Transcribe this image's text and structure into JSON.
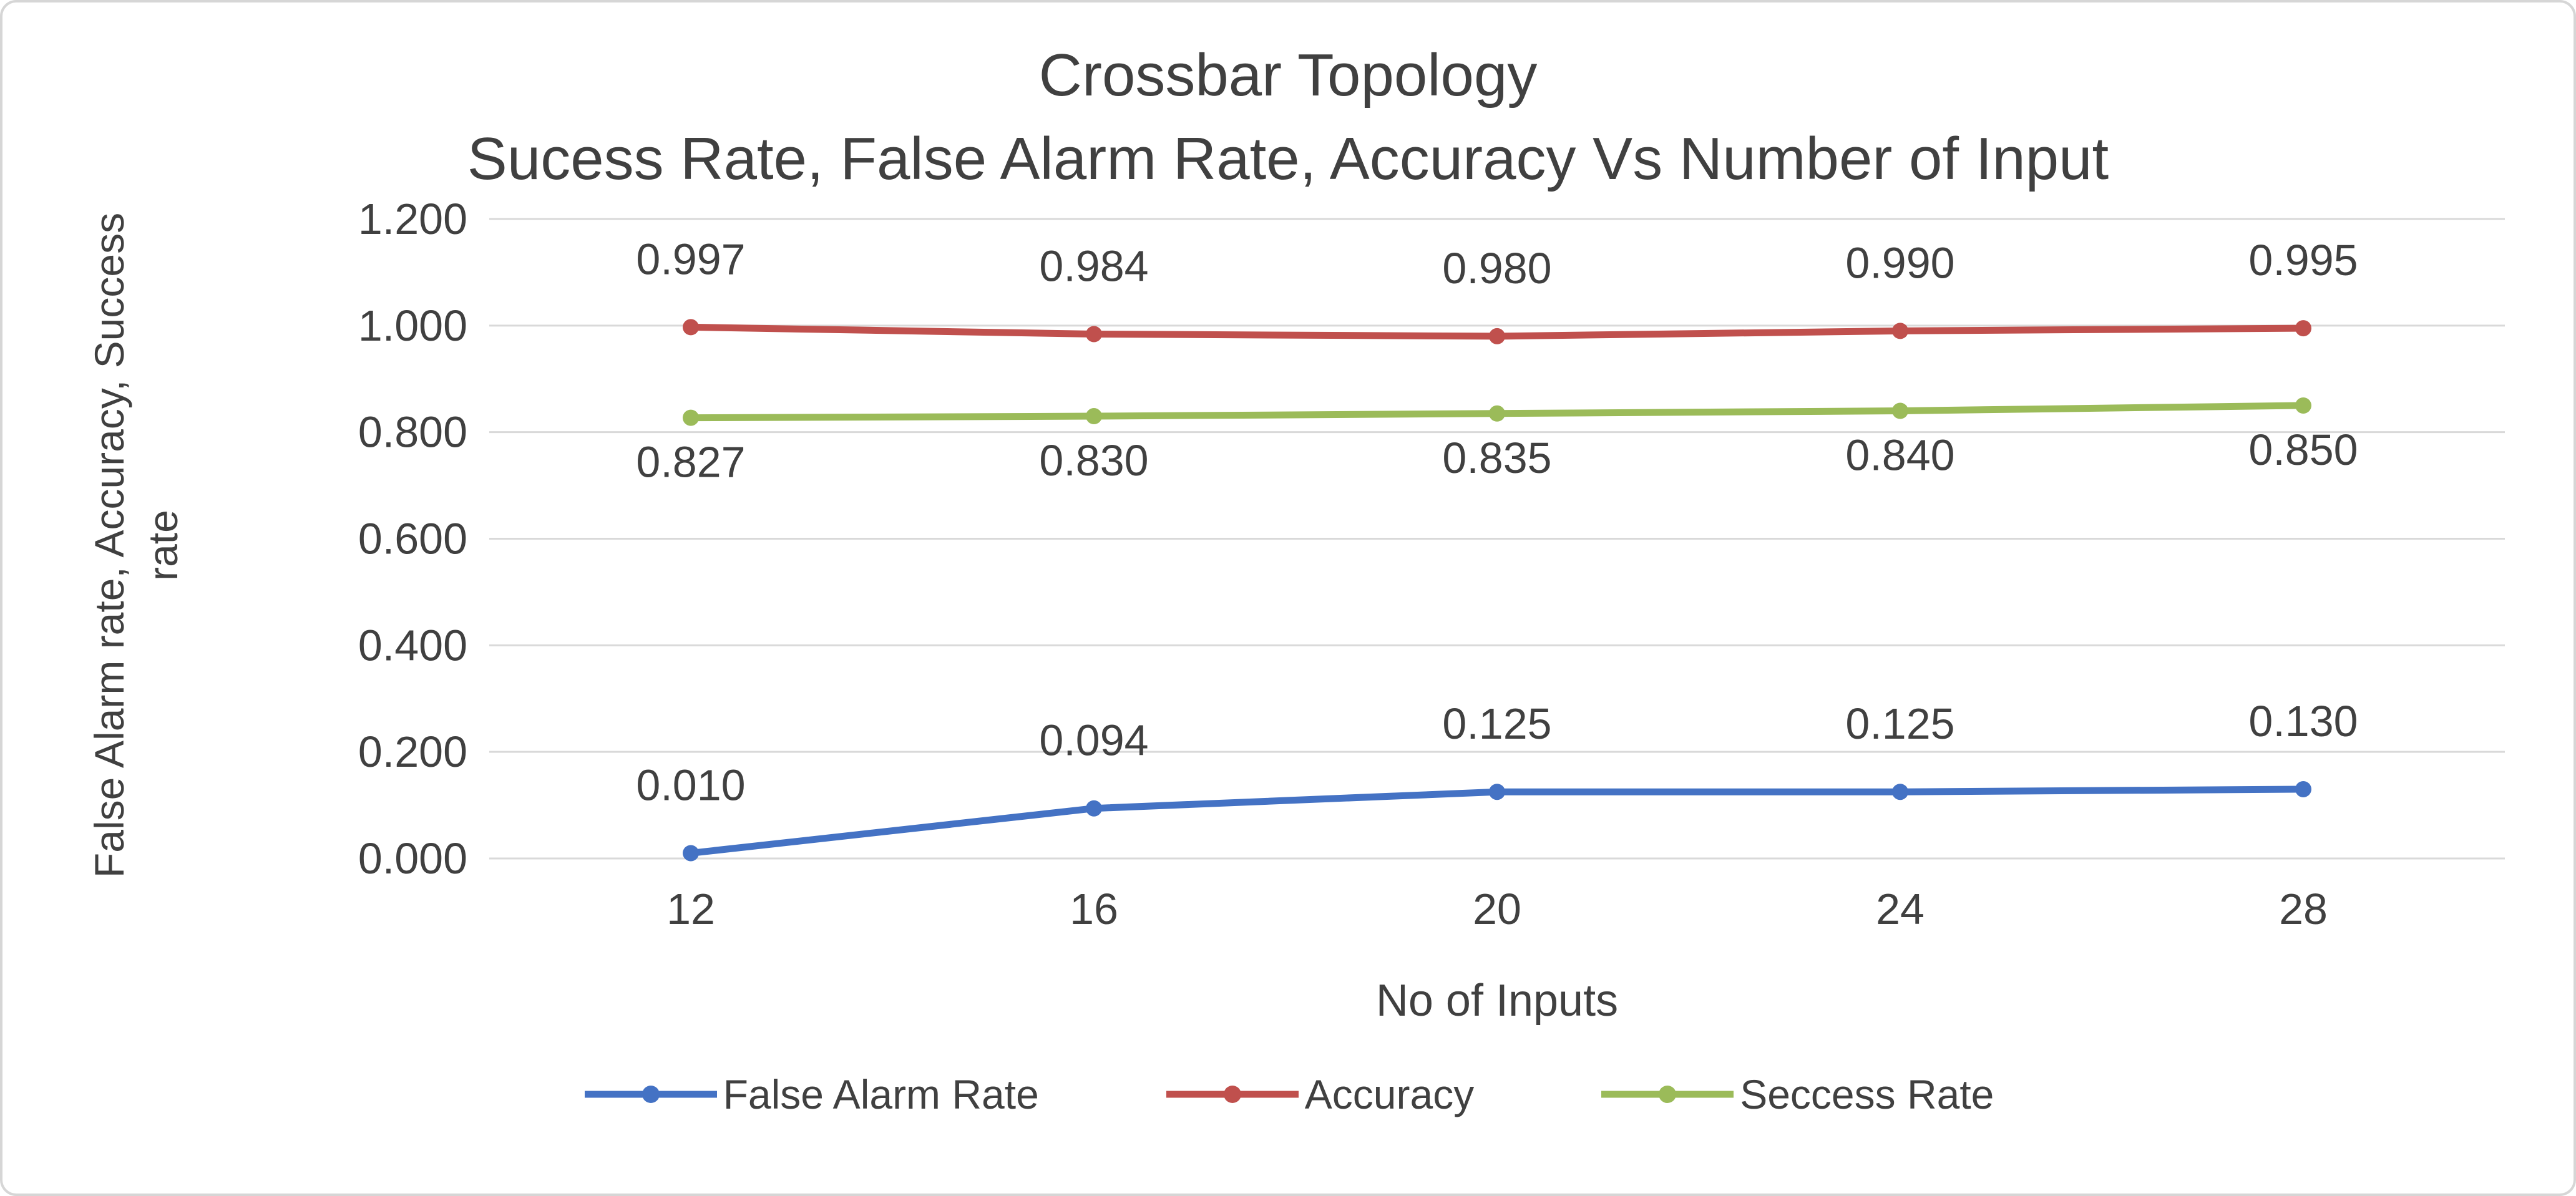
{
  "window": {
    "background_color": "#ffffff",
    "border_color": "#d6d6d6"
  },
  "chart_data": {
    "type": "line",
    "title": "Crossbar Topology",
    "subtitle": "Sucess Rate, False Alarm Rate, Accuracy Vs Number of Input",
    "xlabel": "No of Inputs",
    "ylabel": "False Alarm rate, Accuracy, Success rate",
    "ylabel_lines": [
      "False Alarm rate, Accuracy, Success",
      "rate"
    ],
    "categories": [
      "12",
      "16",
      "20",
      "24",
      "28"
    ],
    "ylim": [
      0,
      1.2
    ],
    "ytick_step": 0.2,
    "ytick_labels": [
      "0.000",
      "0.200",
      "0.400",
      "0.600",
      "0.800",
      "1.000",
      "1.200"
    ],
    "grid": true,
    "grid_color": "#d9d9d9",
    "text_color": "#404040",
    "legend_position": "bottom",
    "series": [
      {
        "name": "False Alarm Rate",
        "color": "#4472C4",
        "values": [
          0.01,
          0.094,
          0.125,
          0.125,
          0.13
        ],
        "labels": [
          "0.010",
          "0.094",
          "0.125",
          "0.125",
          "0.130"
        ],
        "label_position": "above"
      },
      {
        "name": "Accuracy",
        "color": "#C0504D",
        "values": [
          0.997,
          0.984,
          0.98,
          0.99,
          0.995
        ],
        "labels": [
          "0.997",
          "0.984",
          "0.980",
          "0.990",
          "0.995"
        ],
        "label_position": "above"
      },
      {
        "name": "Seccess Rate",
        "color": "#9BBB59",
        "values": [
          0.827,
          0.83,
          0.835,
          0.84,
          0.85
        ],
        "labels": [
          "0.827",
          "0.830",
          "0.835",
          "0.840",
          "0.850"
        ],
        "label_position": "below"
      }
    ]
  }
}
